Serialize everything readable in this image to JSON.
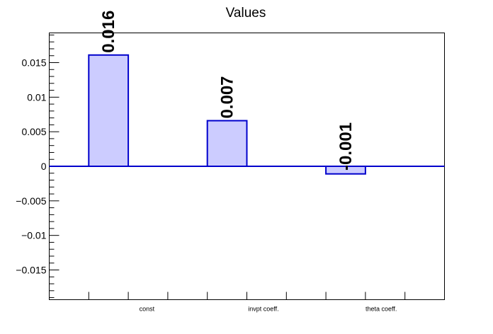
{
  "chart_data": {
    "type": "bar",
    "title": "Values",
    "xlabel": "",
    "ylabel": "",
    "categories": [
      "const",
      "invpt coeff.",
      "theta coeff."
    ],
    "values": [
      0.0161,
      0.0066,
      -0.0011
    ],
    "data_labels": [
      "0.016",
      "0.007",
      "-0.001"
    ],
    "ylim": [
      -0.0193,
      0.0193
    ],
    "yticks": [
      -0.015,
      -0.01,
      -0.005,
      0,
      0.005,
      0.01,
      0.015
    ],
    "ytick_labels": [
      "−0.015",
      "−0.01",
      "−0.005",
      "0",
      "0.005",
      "0.01",
      "0.015"
    ],
    "grid": false,
    "legend": "none",
    "colors": {
      "bar_fill": "#ccccff",
      "bar_edge": "#0000cc",
      "baseline": "#0000cc",
      "axis": "#000000"
    }
  }
}
